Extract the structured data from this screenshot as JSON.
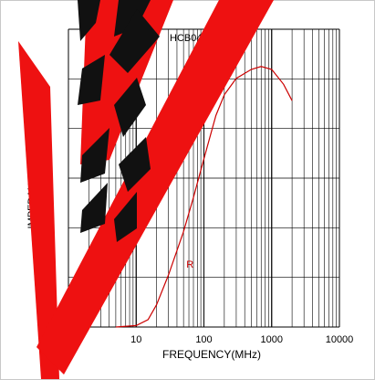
{
  "chart_data": {
    "type": "line",
    "title": "HCB0402S-3",
    "xlabel": "FREQUENCY(MHz)",
    "ylabel": "IMPEDANCE(Ω)",
    "x_scale": "log",
    "xlim": [
      1,
      10000
    ],
    "x_tick_labels": [
      "10",
      "100",
      "1000",
      "10000"
    ],
    "grid": true,
    "legend": "none",
    "series": [
      {
        "name": "R",
        "color": "#cc0000",
        "x": [
          5,
          10,
          15,
          20,
          30,
          50,
          70,
          100,
          150,
          200,
          300,
          500,
          700,
          1000,
          1500,
          2000
        ],
        "values": [
          0,
          0.1,
          0.5,
          1.5,
          3.5,
          6.4,
          8.7,
          11.3,
          14.2,
          15.6,
          16.7,
          17.3,
          17.5,
          17.3,
          16.3,
          15.2
        ]
      }
    ],
    "series_label_text": "R",
    "series_label_x": 55,
    "series_label_y": 4
  },
  "colors": {
    "grid": "#000000",
    "series": "#cc0000",
    "overlay": "#ee1111",
    "dark_marks": "#111111"
  }
}
